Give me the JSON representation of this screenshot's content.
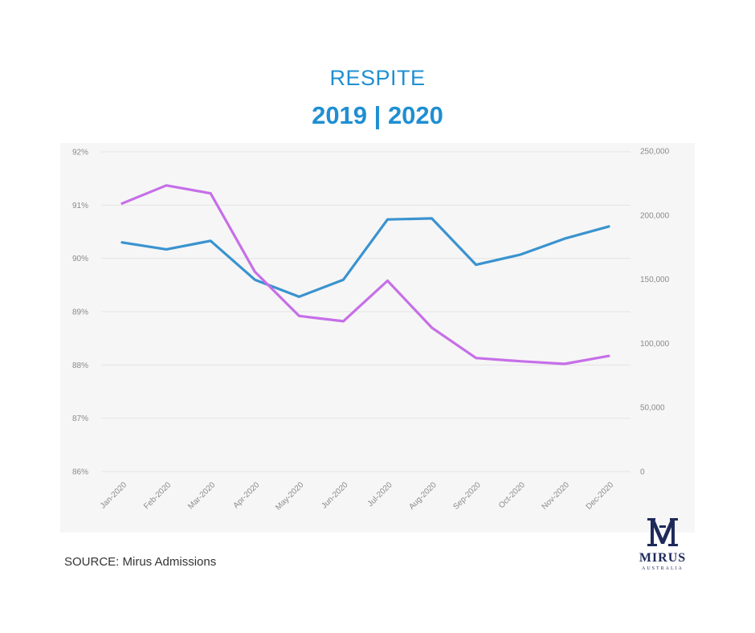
{
  "header": {
    "title": "RESPITE",
    "subtitle": "2019 | 2020"
  },
  "footer": {
    "source": "SOURCE: Mirus Admissions",
    "logo_word": "MIRUS",
    "logo_sub": "AUSTRALIA"
  },
  "colors": {
    "blue_series": "#3a93cf",
    "purple_series": "#c66fe8",
    "title": "#1f8fd2",
    "grid": "#e4e4e4"
  },
  "chart_data": {
    "type": "line",
    "categories": [
      "Jan-2020",
      "Feb-2020",
      "Mar-2020",
      "Apr-2020",
      "May-2020",
      "Jun-2020",
      "Jul-2020",
      "Aug-2020",
      "Sep-2020",
      "Oct-2020",
      "Nov-2020",
      "Dec-2020"
    ],
    "y_left": {
      "min": 86,
      "max": 92,
      "ticks": [
        "86%",
        "87%",
        "88%",
        "89%",
        "90%",
        "91%",
        "92%"
      ]
    },
    "y_right": {
      "min": 0,
      "max": 250000,
      "ticks": [
        "0",
        "50,000",
        "100,000",
        "150,000",
        "200,000",
        "250,000"
      ]
    },
    "grid": true,
    "series": [
      {
        "axis": "left",
        "color": "#3a93cf",
        "values": [
          90.3,
          90.17,
          90.33,
          89.6,
          89.28,
          89.6,
          90.73,
          90.75,
          89.88,
          90.07,
          90.37,
          90.6
        ]
      },
      {
        "axis": "left",
        "color": "#c66fe8",
        "values": [
          91.03,
          91.37,
          91.22,
          89.75,
          88.92,
          88.82,
          89.58,
          88.7,
          88.13,
          88.07,
          88.02,
          88.17
        ]
      }
    ]
  }
}
